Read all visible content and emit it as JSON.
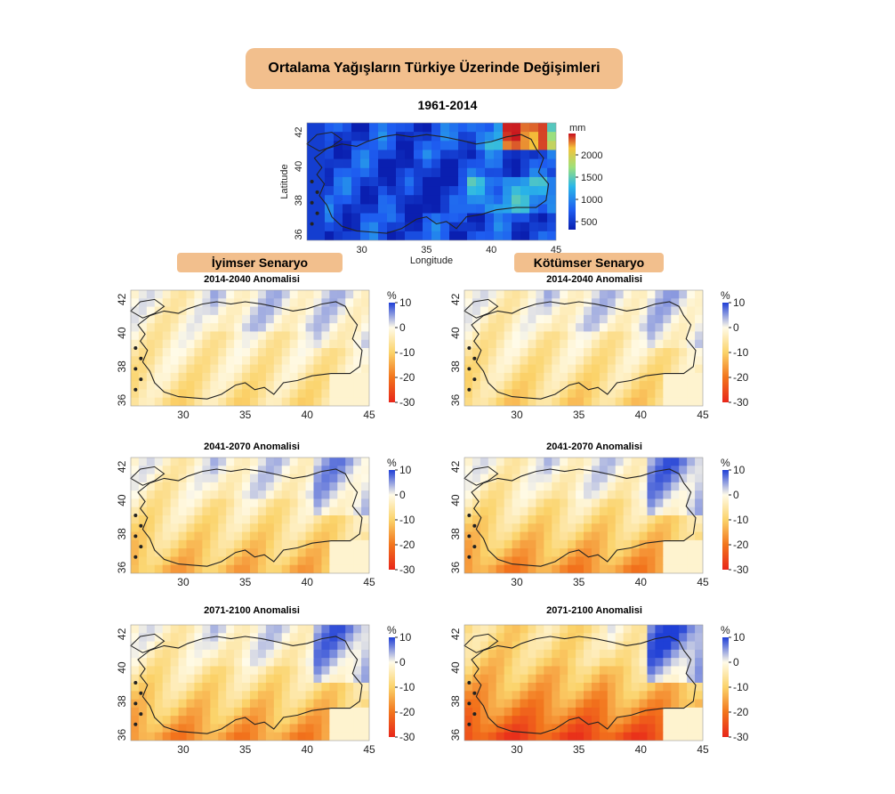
{
  "header": {
    "title": "Ortalama Yağışların Türkiye Üzerinde Değişimleri",
    "base_period": "1961-2014"
  },
  "base_map": {
    "unit": "mm",
    "xlabel": "Longitude",
    "ylabel": "Latitude",
    "colorbar_ticks": [
      "2000",
      "1500",
      "1000",
      "500"
    ],
    "x_ticks": [
      "30",
      "35",
      "40",
      "45"
    ],
    "y_ticks": [
      "42",
      "40",
      "38",
      "36"
    ]
  },
  "scenarios": {
    "optimistic": "İyimser Senaryo",
    "pessimistic": "Kötümser Senaryo"
  },
  "anomaly_maps": {
    "unit": "%",
    "colorbar_ticks": [
      "10",
      "0",
      "-10",
      "-20",
      "-30"
    ],
    "x_ticks": [
      "30",
      "35",
      "40",
      "45"
    ],
    "y_ticks": [
      "42",
      "40",
      "38",
      "36"
    ],
    "panels": [
      {
        "title": "2014-2040 Anomalisi",
        "scenario": "optimistic"
      },
      {
        "title": "2014-2040 Anomalisi",
        "scenario": "pessimistic"
      },
      {
        "title": "2041-2070 Anomalisi",
        "scenario": "optimistic"
      },
      {
        "title": "2041-2070 Anomalisi",
        "scenario": "pessimistic"
      },
      {
        "title": "2071-2100 Anomalisi",
        "scenario": "optimistic"
      },
      {
        "title": "2071-2100 Anomalisi",
        "scenario": "pessimistic"
      }
    ]
  },
  "colors": {
    "title_box": "#f2bf8d",
    "wet": "#1f3fd6",
    "dry": "#e8261a",
    "neutral": "#fffbe8"
  }
}
